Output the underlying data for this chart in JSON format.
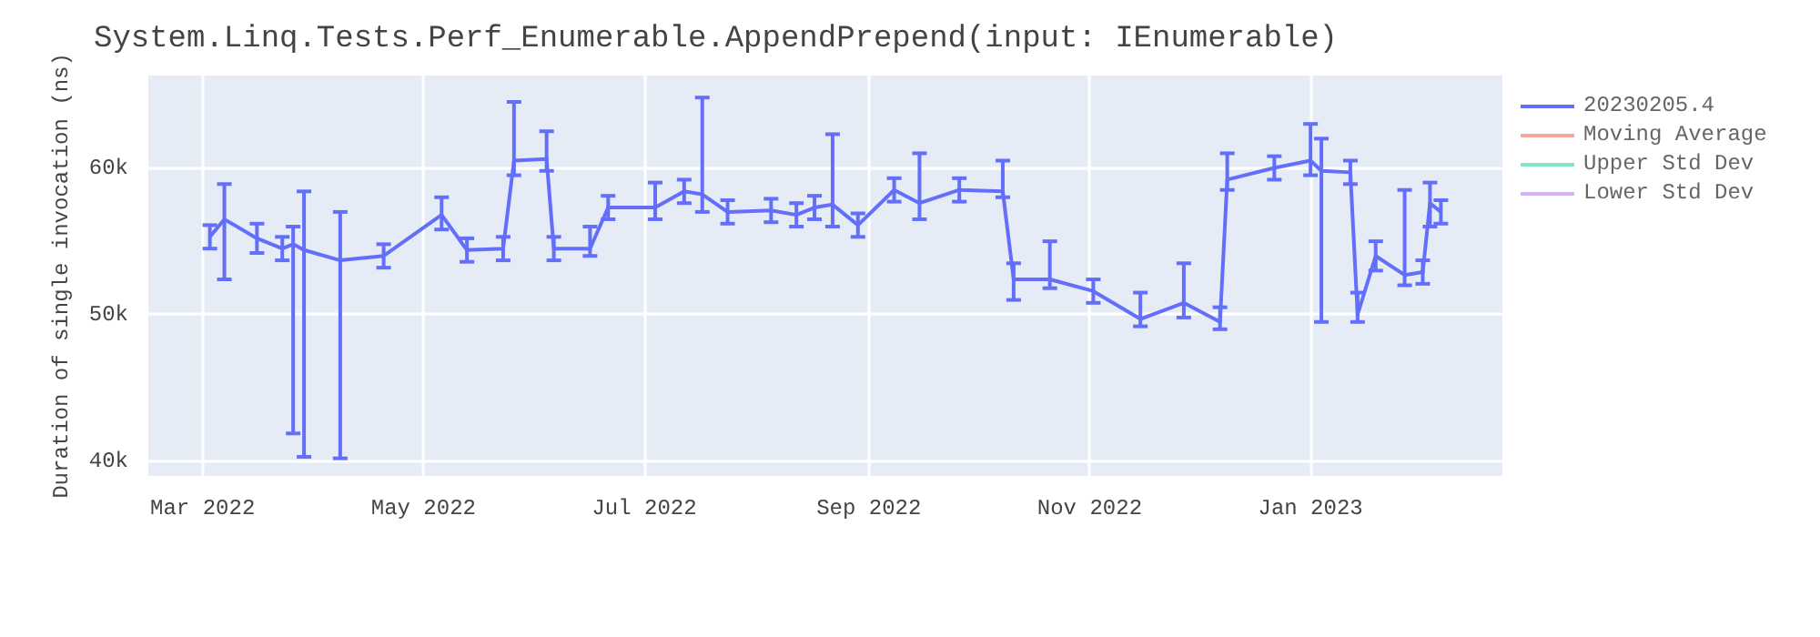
{
  "chart_data": {
    "type": "line",
    "title": "System.Linq.Tests.Perf_Enumerable.AppendPrepend(input: IEnumerable)",
    "ylabel": "Duration of single invocation (ns)",
    "x": [
      "2022-03-03",
      "2022-03-07",
      "2022-03-16",
      "2022-03-23",
      "2022-03-26",
      "2022-03-29",
      "2022-04-08",
      "2022-04-20",
      "2022-05-06",
      "2022-05-13",
      "2022-05-23",
      "2022-05-26",
      "2022-06-04",
      "2022-06-06",
      "2022-06-16",
      "2022-06-21",
      "2022-07-04",
      "2022-07-12",
      "2022-07-17",
      "2022-07-24",
      "2022-08-05",
      "2022-08-12",
      "2022-08-17",
      "2022-08-22",
      "2022-08-29",
      "2022-09-08",
      "2022-09-15",
      "2022-09-26",
      "2022-10-08",
      "2022-10-11",
      "2022-10-21",
      "2022-11-02",
      "2022-11-15",
      "2022-11-27",
      "2022-12-07",
      "2022-12-09",
      "2022-12-22",
      "2023-01-01",
      "2023-01-04",
      "2023-01-12",
      "2023-01-14",
      "2023-01-19",
      "2023-01-27",
      "2023-02-01",
      "2023-02-03",
      "2023-02-06"
    ],
    "series": [
      {
        "name": "20230205.4",
        "color": "#636efa",
        "values": [
          55300,
          56500,
          55200,
          54500,
          54800,
          54400,
          53700,
          54000,
          56800,
          54400,
          54500,
          60500,
          60600,
          54500,
          54500,
          57300,
          57300,
          58400,
          58200,
          57000,
          57100,
          56800,
          57300,
          57500,
          56100,
          58500,
          57600,
          58500,
          58400,
          52400,
          52400,
          51600,
          49700,
          50800,
          49500,
          59200,
          60000,
          60500,
          59800,
          59700,
          50000,
          54000,
          52700,
          52900,
          57600,
          57000
        ],
        "errors": [
          800,
          [
            52400,
            58900
          ],
          1000,
          800,
          [
            41900,
            56000
          ],
          [
            40300,
            58400
          ],
          [
            40200,
            57000
          ],
          800,
          [
            55800,
            58000
          ],
          800,
          800,
          [
            59500,
            64500
          ],
          [
            59800,
            62500
          ],
          800,
          [
            54000,
            56000
          ],
          800,
          [
            56500,
            59000
          ],
          800,
          [
            57000,
            64800
          ],
          800,
          800,
          800,
          800,
          [
            56000,
            62300
          ],
          800,
          800,
          [
            56500,
            61000
          ],
          800,
          [
            58000,
            60500
          ],
          [
            51000,
            53500
          ],
          [
            51800,
            55000
          ],
          800,
          [
            49200,
            51500
          ],
          [
            49800,
            53500
          ],
          [
            49000,
            50500
          ],
          [
            58500,
            61000
          ],
          800,
          [
            59500,
            63000
          ],
          [
            49500,
            62000
          ],
          800,
          [
            49500,
            51500
          ],
          [
            53000,
            55000
          ],
          [
            52000,
            58500
          ],
          800,
          [
            56000,
            59000
          ],
          800
        ]
      },
      {
        "name": "Moving Average",
        "color": "#f5a99b",
        "values": [
          null,
          null,
          null,
          null,
          null,
          null,
          null,
          null,
          null,
          null,
          null,
          null,
          null,
          null,
          null,
          null,
          null,
          null,
          null,
          null,
          null,
          null,
          null,
          null,
          null,
          null,
          null,
          null,
          null,
          null,
          null,
          null,
          null,
          null,
          null,
          null,
          null,
          null,
          null,
          null,
          null,
          null,
          null,
          null,
          null,
          null
        ]
      },
      {
        "name": "Upper Std Dev",
        "color": "#7fe5ca",
        "values": [
          null,
          null,
          null,
          null,
          null,
          null,
          null,
          null,
          null,
          null,
          null,
          null,
          null,
          null,
          null,
          null,
          null,
          null,
          null,
          null,
          null,
          null,
          null,
          null,
          null,
          null,
          null,
          null,
          null,
          null,
          null,
          null,
          null,
          null,
          null,
          null,
          null,
          null,
          null,
          null,
          null,
          null,
          null,
          null,
          null,
          null
        ]
      },
      {
        "name": "Lower Std Dev",
        "color": "#d5b1fc",
        "values": [
          null,
          null,
          null,
          null,
          null,
          null,
          null,
          null,
          null,
          null,
          null,
          null,
          null,
          null,
          null,
          null,
          null,
          null,
          null,
          null,
          null,
          null,
          null,
          null,
          null,
          null,
          null,
          null,
          null,
          null,
          null,
          null,
          null,
          null,
          null,
          null,
          null,
          null,
          null,
          null,
          null,
          null,
          null,
          null,
          null,
          null
        ]
      }
    ],
    "xlim": [
      "2022-02-14",
      "2023-02-23"
    ],
    "xticks": [
      {
        "value": "2022-03-01",
        "label": "Mar 2022"
      },
      {
        "value": "2022-05-01",
        "label": "May 2022"
      },
      {
        "value": "2022-07-01",
        "label": "Jul 2022"
      },
      {
        "value": "2022-09-01",
        "label": "Sep 2022"
      },
      {
        "value": "2022-11-01",
        "label": "Nov 2022"
      },
      {
        "value": "2023-01-01",
        "label": "Jan 2023"
      }
    ],
    "ylim": [
      39000,
      66300
    ],
    "yticks": [
      {
        "value": 40000,
        "label": "40k"
      },
      {
        "value": 50000,
        "label": "50k"
      },
      {
        "value": 60000,
        "label": "60k"
      }
    ],
    "grid": true,
    "legend": "top right",
    "marker": "none",
    "line_style": "solid"
  }
}
